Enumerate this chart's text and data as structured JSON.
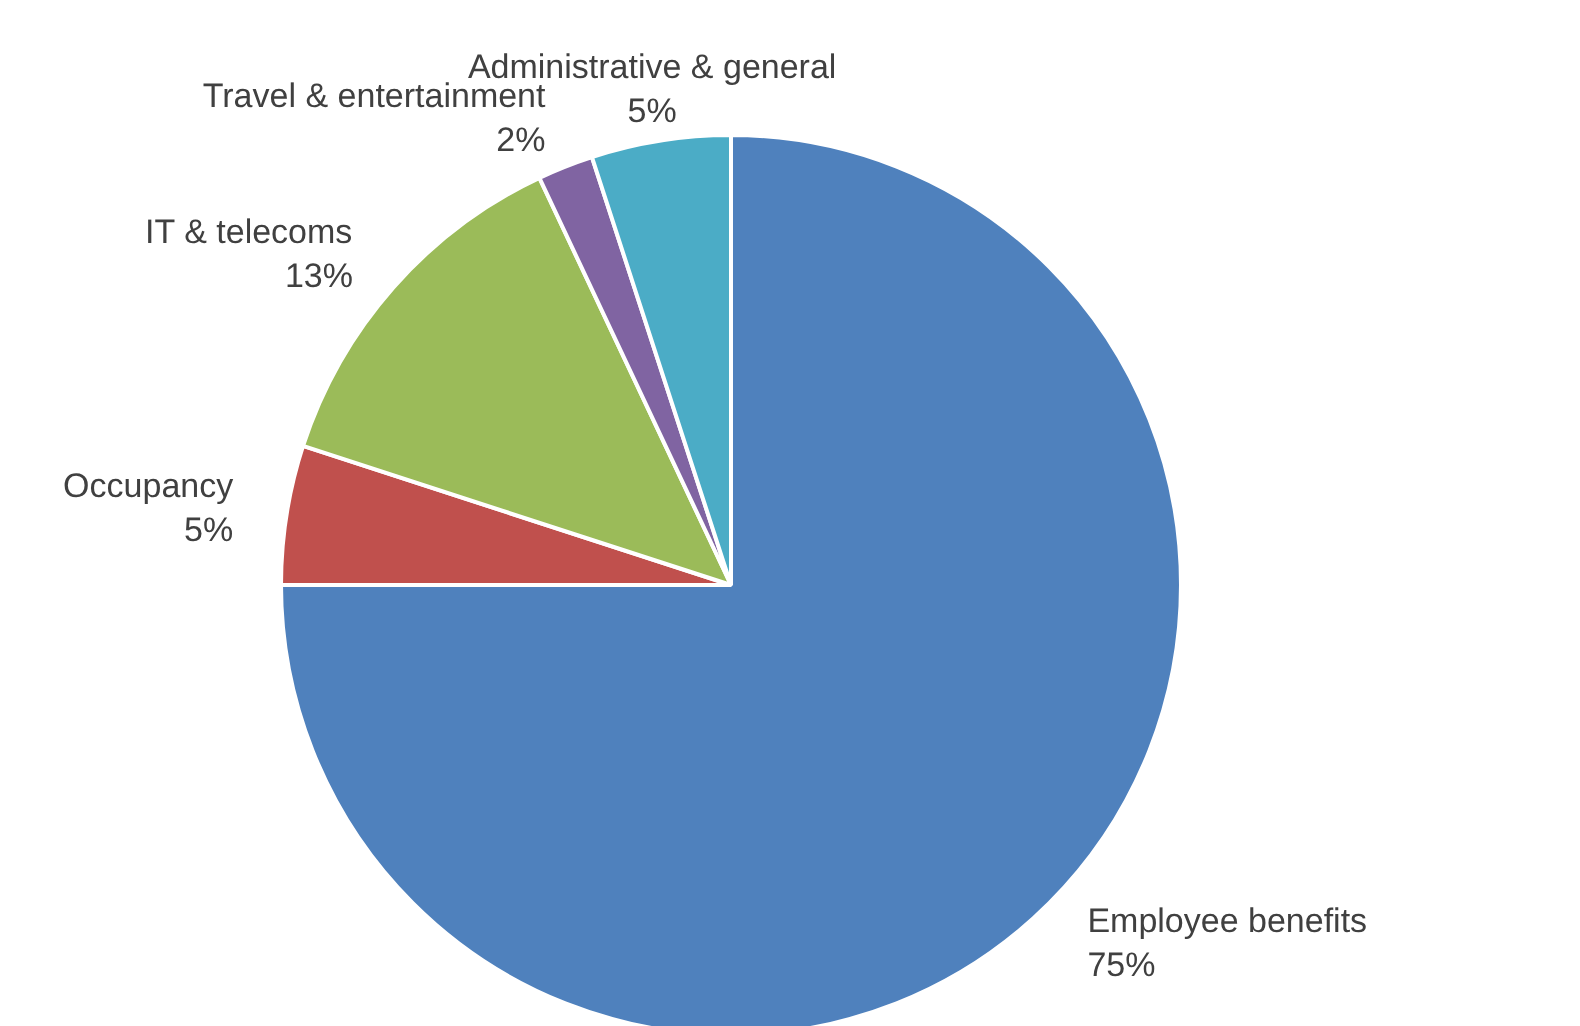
{
  "chart_data": {
    "type": "pie",
    "categories": [
      "Employee benefits",
      "Occupancy",
      "IT & telecoms",
      "Travel & entertainment",
      "Administrative & general"
    ],
    "values": [
      75,
      5,
      13,
      2,
      5
    ],
    "value_labels": [
      "75%",
      "5%",
      "13%",
      "2%",
      "5%"
    ],
    "colors": [
      "#4f81bd",
      "#c0504d",
      "#9bbb59",
      "#8064a2",
      "#4bacc6"
    ]
  }
}
